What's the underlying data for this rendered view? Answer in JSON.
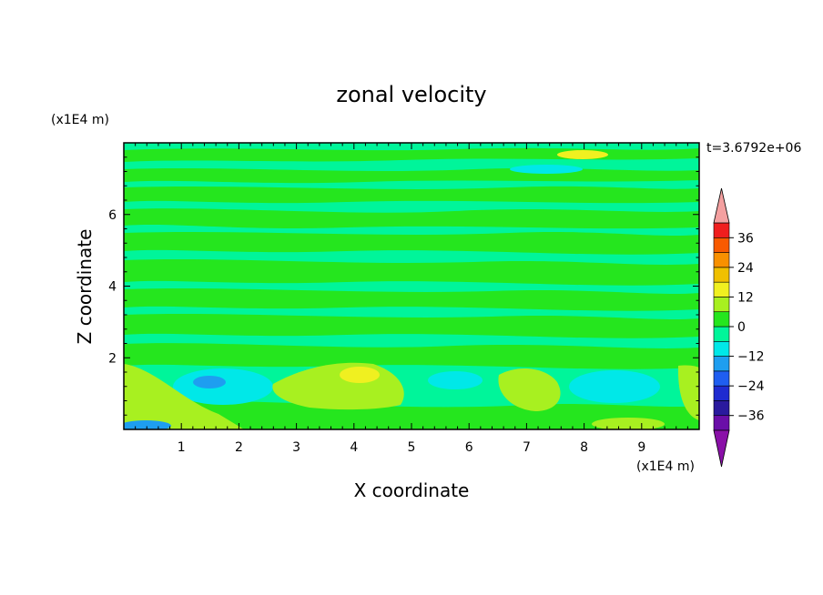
{
  "chart_data": {
    "type": "heatmap",
    "title": "zonal velocity",
    "xlabel": "X coordinate",
    "ylabel": "Z coordinate",
    "x_unit": "(x1E4 m)",
    "y_unit": "(x1E4 m)",
    "time_label": "t=3.6792e+06",
    "xlim": [
      0,
      10
    ],
    "ylim": [
      0,
      8
    ],
    "x_ticks": [
      1,
      2,
      3,
      4,
      5,
      6,
      7,
      8,
      9
    ],
    "y_ticks": [
      2,
      4,
      6
    ],
    "colorbar": {
      "levels": [
        -42,
        -36,
        -30,
        -24,
        -18,
        -12,
        -6,
        0,
        6,
        12,
        18,
        24,
        30,
        36,
        42
      ],
      "tick_values": [
        -36,
        -24,
        -12,
        0,
        12,
        24,
        36
      ],
      "tick_labels": [
        "−36",
        "−24",
        "−12",
        "0",
        "12",
        "24",
        "36"
      ],
      "colors": [
        "#6a0ea8",
        "#2a1a9e",
        "#1f2bd0",
        "#1f5ef0",
        "#1e9ef0",
        "#00e8e8",
        "#00f59a",
        "#25e61e",
        "#a8f020",
        "#f0f020",
        "#f0c000",
        "#f89000",
        "#f85a00",
        "#f01e1e"
      ],
      "under_color": "#8a10a8",
      "over_color": "#f4a0a0"
    },
    "grid": false
  }
}
